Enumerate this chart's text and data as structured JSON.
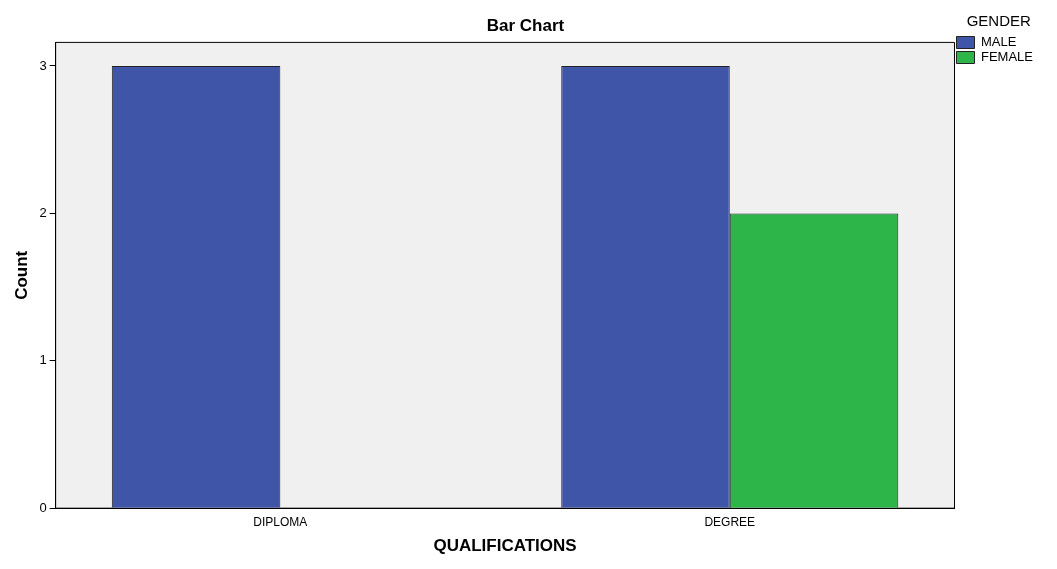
{
  "chart_data": {
    "type": "bar",
    "title": "Bar Chart",
    "xlabel": "QUALIFICATIONS",
    "ylabel": "Count",
    "legend_title": "GENDER",
    "categories": [
      "DIPLOMA",
      "DEGREE"
    ],
    "series": [
      {
        "name": "MALE",
        "color": "#3f56a8",
        "values": [
          3,
          3
        ]
      },
      {
        "name": "FEMALE",
        "color": "#2db54a",
        "values": [
          null,
          2
        ]
      }
    ],
    "ylim": [
      0,
      3.16
    ],
    "yticks": [
      0,
      1,
      2,
      3
    ],
    "grid": false,
    "legend": "top right"
  }
}
